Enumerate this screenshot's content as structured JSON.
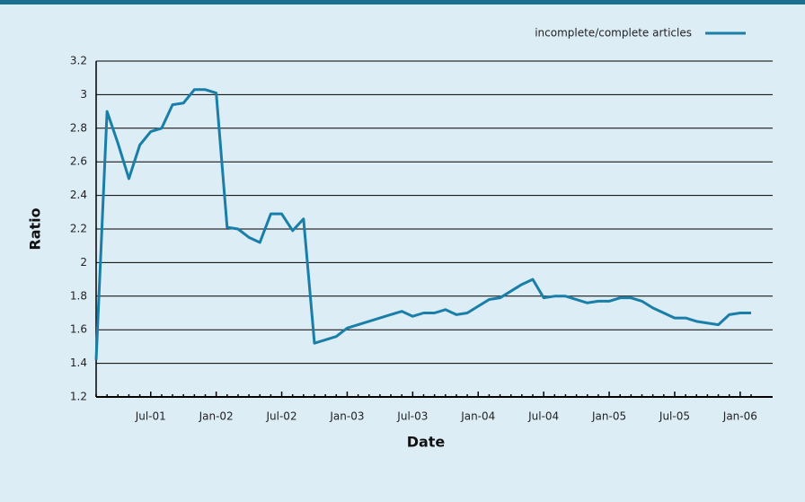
{
  "chart_data": {
    "type": "line",
    "ylabel": "Ratio",
    "xlabel": "Date",
    "categories": [
      null,
      null,
      null,
      null,
      null,
      "Jul-01",
      null,
      null,
      null,
      null,
      null,
      "Jan-02",
      null,
      null,
      null,
      null,
      null,
      "Jul-02",
      null,
      null,
      null,
      null,
      null,
      "Jan-03",
      null,
      null,
      null,
      null,
      null,
      "Jul-03",
      null,
      null,
      null,
      null,
      null,
      "Jan-04",
      null,
      null,
      null,
      null,
      null,
      "Jul-04",
      null,
      null,
      null,
      null,
      null,
      "Jan-05",
      null,
      null,
      null,
      null,
      null,
      "Jul-05",
      null,
      null,
      null,
      null,
      null,
      "Jan-06",
      null
    ],
    "series": [
      {
        "name": "incomplete/complete articles",
        "color": "#1a7fa8",
        "values": [
          1.42,
          2.9,
          2.71,
          2.5,
          2.7,
          2.78,
          2.8,
          2.94,
          2.95,
          3.03,
          3.03,
          3.01,
          2.21,
          2.2,
          2.15,
          2.12,
          2.29,
          2.29,
          2.19,
          2.26,
          1.52,
          1.54,
          1.56,
          1.61,
          1.63,
          1.65,
          1.67,
          1.69,
          1.71,
          1.68,
          1.7,
          1.7,
          1.72,
          1.69,
          1.7,
          1.74,
          1.78,
          1.79,
          1.83,
          1.87,
          1.9,
          1.79,
          1.8,
          1.8,
          1.78,
          1.76,
          1.77,
          1.77,
          1.79,
          1.79,
          1.77,
          1.73,
          1.7,
          1.67,
          1.67,
          1.65,
          1.64,
          1.63,
          1.69,
          1.7,
          1.7
        ]
      }
    ],
    "ylim": [
      1.2,
      3.2
    ],
    "yticks": [
      1.2,
      1.4,
      1.6,
      1.8,
      2,
      2.2,
      2.4,
      2.6,
      2.8,
      3,
      3.2
    ],
    "grid": true,
    "legend": "top-right"
  }
}
